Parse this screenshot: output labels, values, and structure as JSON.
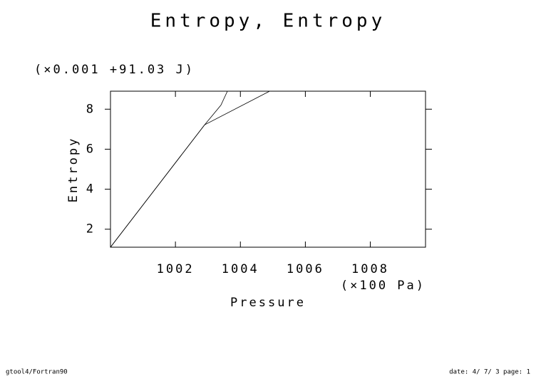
{
  "chart_data": {
    "type": "line",
    "title": "Entropy, Entropy",
    "y_scale_note": "(×0.001 +91.03 J)",
    "y_label": "Entropy",
    "x_label": "Pressure",
    "x_unit": "(×100 Pa)",
    "series": [
      {
        "color": "#000000",
        "x": [
          1000,
          1002.9,
          1003.4,
          1003.6
        ],
        "values": [
          1.1,
          7.22,
          8.2,
          8.9
        ]
      },
      {
        "color": "#000000",
        "x": [
          1000,
          1002.9,
          1004.9
        ],
        "values": [
          1.1,
          7.22,
          8.9
        ]
      }
    ],
    "xlim": [
      1000,
      1009.7
    ],
    "ylim": [
      1.1,
      8.9
    ],
    "xticks": [
      1002,
      1004,
      1006,
      1008
    ],
    "yticks": [
      2,
      4,
      6,
      8
    ],
    "grid": false
  },
  "footer": {
    "left": "gtool4/Fortran90",
    "right": "date: 4/ 7/ 3 page: 1"
  }
}
